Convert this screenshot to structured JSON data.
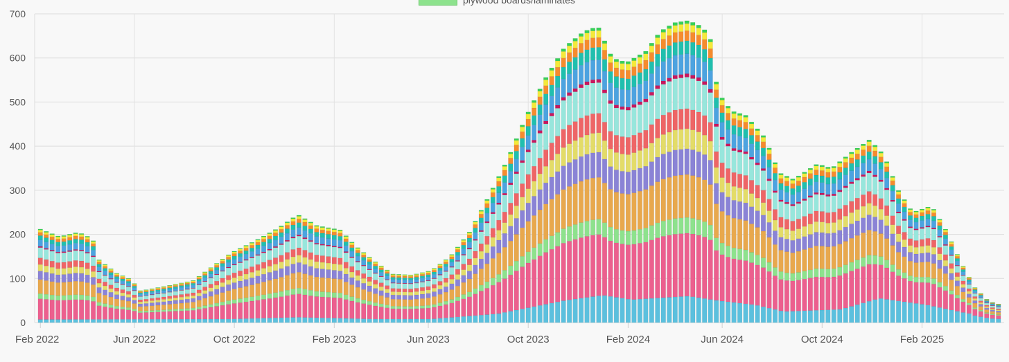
{
  "chart_data": {
    "type": "bar",
    "stacked": true,
    "grid": true,
    "y_range": [
      0,
      700
    ],
    "y_ticks": [
      "0",
      "100",
      "200",
      "300",
      "400",
      "500",
      "600",
      "700"
    ],
    "x_tick_labels": [
      "Feb 2022",
      "Jun 2022",
      "Oct 2022",
      "Feb 2023",
      "Jun 2023",
      "Oct 2023",
      "Feb 2024",
      "Jun 2024",
      "Oct 2024",
      "Feb 2025"
    ],
    "legend_visible": "plywood boards/laminates",
    "bar_count": 164,
    "totals_anchor_points": [
      [
        0,
        212
      ],
      [
        4,
        195
      ],
      [
        8,
        205
      ],
      [
        11,
        190
      ],
      [
        12,
        145
      ],
      [
        16,
        112
      ],
      [
        19,
        98
      ],
      [
        21,
        72
      ],
      [
        26,
        82
      ],
      [
        32,
        95
      ],
      [
        40,
        158
      ],
      [
        45,
        185
      ],
      [
        50,
        215
      ],
      [
        54,
        245
      ],
      [
        58,
        220
      ],
      [
        63,
        210
      ],
      [
        66,
        175
      ],
      [
        70,
        140
      ],
      [
        74,
        110
      ],
      [
        78,
        108
      ],
      [
        82,
        118
      ],
      [
        86,
        150
      ],
      [
        90,
        205
      ],
      [
        94,
        285
      ],
      [
        98,
        370
      ],
      [
        102,
        470
      ],
      [
        106,
        555
      ],
      [
        110,
        625
      ],
      [
        114,
        660
      ],
      [
        117,
        672
      ],
      [
        120,
        600
      ],
      [
        123,
        590
      ],
      [
        127,
        615
      ],
      [
        130,
        660
      ],
      [
        133,
        680
      ],
      [
        136,
        685
      ],
      [
        139,
        670
      ],
      [
        141,
        635
      ],
      [
        142,
        525
      ],
      [
        145,
        480
      ],
      [
        148,
        470
      ],
      [
        152,
        420
      ],
      [
        155,
        340
      ],
      [
        158,
        325
      ],
      [
        163,
        360
      ],
      [
        166,
        350
      ],
      [
        170,
        385
      ],
      [
        174,
        415
      ],
      [
        177,
        380
      ],
      [
        180,
        300
      ],
      [
        183,
        250
      ],
      [
        187,
        265
      ],
      [
        190,
        210
      ],
      [
        193,
        140
      ],
      [
        196,
        80
      ],
      [
        199,
        48
      ],
      [
        201,
        42
      ]
    ],
    "series": [
      {
        "color": "#5bc0de",
        "base_anchors": [
          [
            0,
            7
          ],
          [
            40,
            8
          ],
          [
            54,
            12
          ],
          [
            70,
            8
          ],
          [
            82,
            8
          ],
          [
            96,
            20
          ],
          [
            110,
            50
          ],
          [
            118,
            62
          ],
          [
            124,
            52
          ],
          [
            136,
            60
          ],
          [
            142,
            50
          ],
          [
            150,
            40
          ],
          [
            156,
            25
          ],
          [
            168,
            30
          ],
          [
            176,
            55
          ],
          [
            186,
            40
          ],
          [
            194,
            22
          ],
          [
            201,
            12
          ]
        ]
      },
      {
        "color": "#ec5f8e",
        "share": 0.22
      },
      {
        "color": "#8de28d",
        "share": 0.055
      },
      {
        "color": "#e8a84d",
        "share": 0.15
      },
      {
        "color": "#8a83d6",
        "share": 0.09
      },
      {
        "color": "#e3dc68",
        "share": 0.07
      },
      {
        "color": "#ee6566",
        "share": 0.07
      },
      {
        "color": "#97e6dc",
        "share": 0.11
      },
      {
        "color": "#c8175e",
        "share": 0.012
      },
      {
        "color": "#4ca3e0",
        "share": 0.07
      },
      {
        "color": "#20bfae",
        "share": 0.045
      },
      {
        "color": "#f58b2e",
        "share": 0.035
      },
      {
        "color": "#f5e93a",
        "share": 0.025
      },
      {
        "color": "#36d158",
        "share": 0.01
      }
    ]
  }
}
